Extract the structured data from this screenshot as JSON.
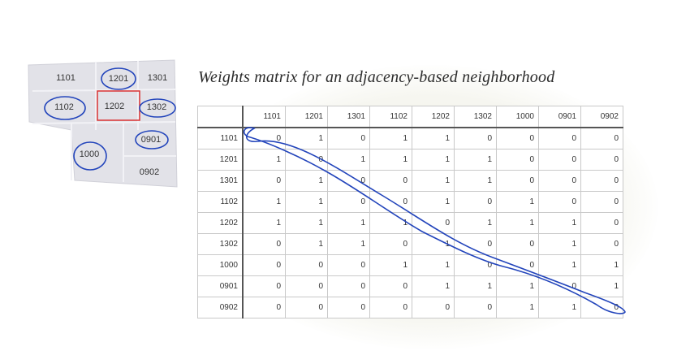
{
  "title": "Weights matrix for an adjacency-based neighborhood",
  "map_labels": [
    "1101",
    "1201",
    "1301",
    "1102",
    "1202",
    "1302",
    "1000",
    "0901",
    "0902"
  ],
  "matrix": {
    "columns": [
      "1101",
      "1201",
      "1301",
      "1102",
      "1202",
      "1302",
      "1000",
      "0901",
      "0902"
    ],
    "rows": [
      {
        "label": "1101",
        "values": [
          "0",
          "1",
          "0",
          "1",
          "1",
          "0",
          "0",
          "0",
          "0"
        ]
      },
      {
        "label": "1201",
        "values": [
          "1",
          "0",
          "1",
          "1",
          "1",
          "1",
          "0",
          "0",
          "0"
        ]
      },
      {
        "label": "1301",
        "values": [
          "0",
          "1",
          "0",
          "0",
          "1",
          "1",
          "0",
          "0",
          "0"
        ]
      },
      {
        "label": "1102",
        "values": [
          "1",
          "1",
          "0",
          "0",
          "1",
          "0",
          "1",
          "0",
          "0"
        ]
      },
      {
        "label": "1202",
        "values": [
          "1",
          "1",
          "1",
          "1",
          "0",
          "1",
          "1",
          "1",
          "0"
        ]
      },
      {
        "label": "1302",
        "values": [
          "0",
          "1",
          "1",
          "0",
          "1",
          "0",
          "0",
          "1",
          "0"
        ]
      },
      {
        "label": "1000",
        "values": [
          "0",
          "0",
          "0",
          "1",
          "1",
          "0",
          "0",
          "1",
          "1"
        ]
      },
      {
        "label": "0901",
        "values": [
          "0",
          "0",
          "0",
          "0",
          "1",
          "1",
          "1",
          "0",
          "1"
        ]
      },
      {
        "label": "0902",
        "values": [
          "0",
          "0",
          "0",
          "0",
          "0",
          "0",
          "1",
          "1",
          "0"
        ]
      }
    ]
  },
  "colors": {
    "highlight_box": "#d93232",
    "annotation_ink": "#2244bb"
  }
}
